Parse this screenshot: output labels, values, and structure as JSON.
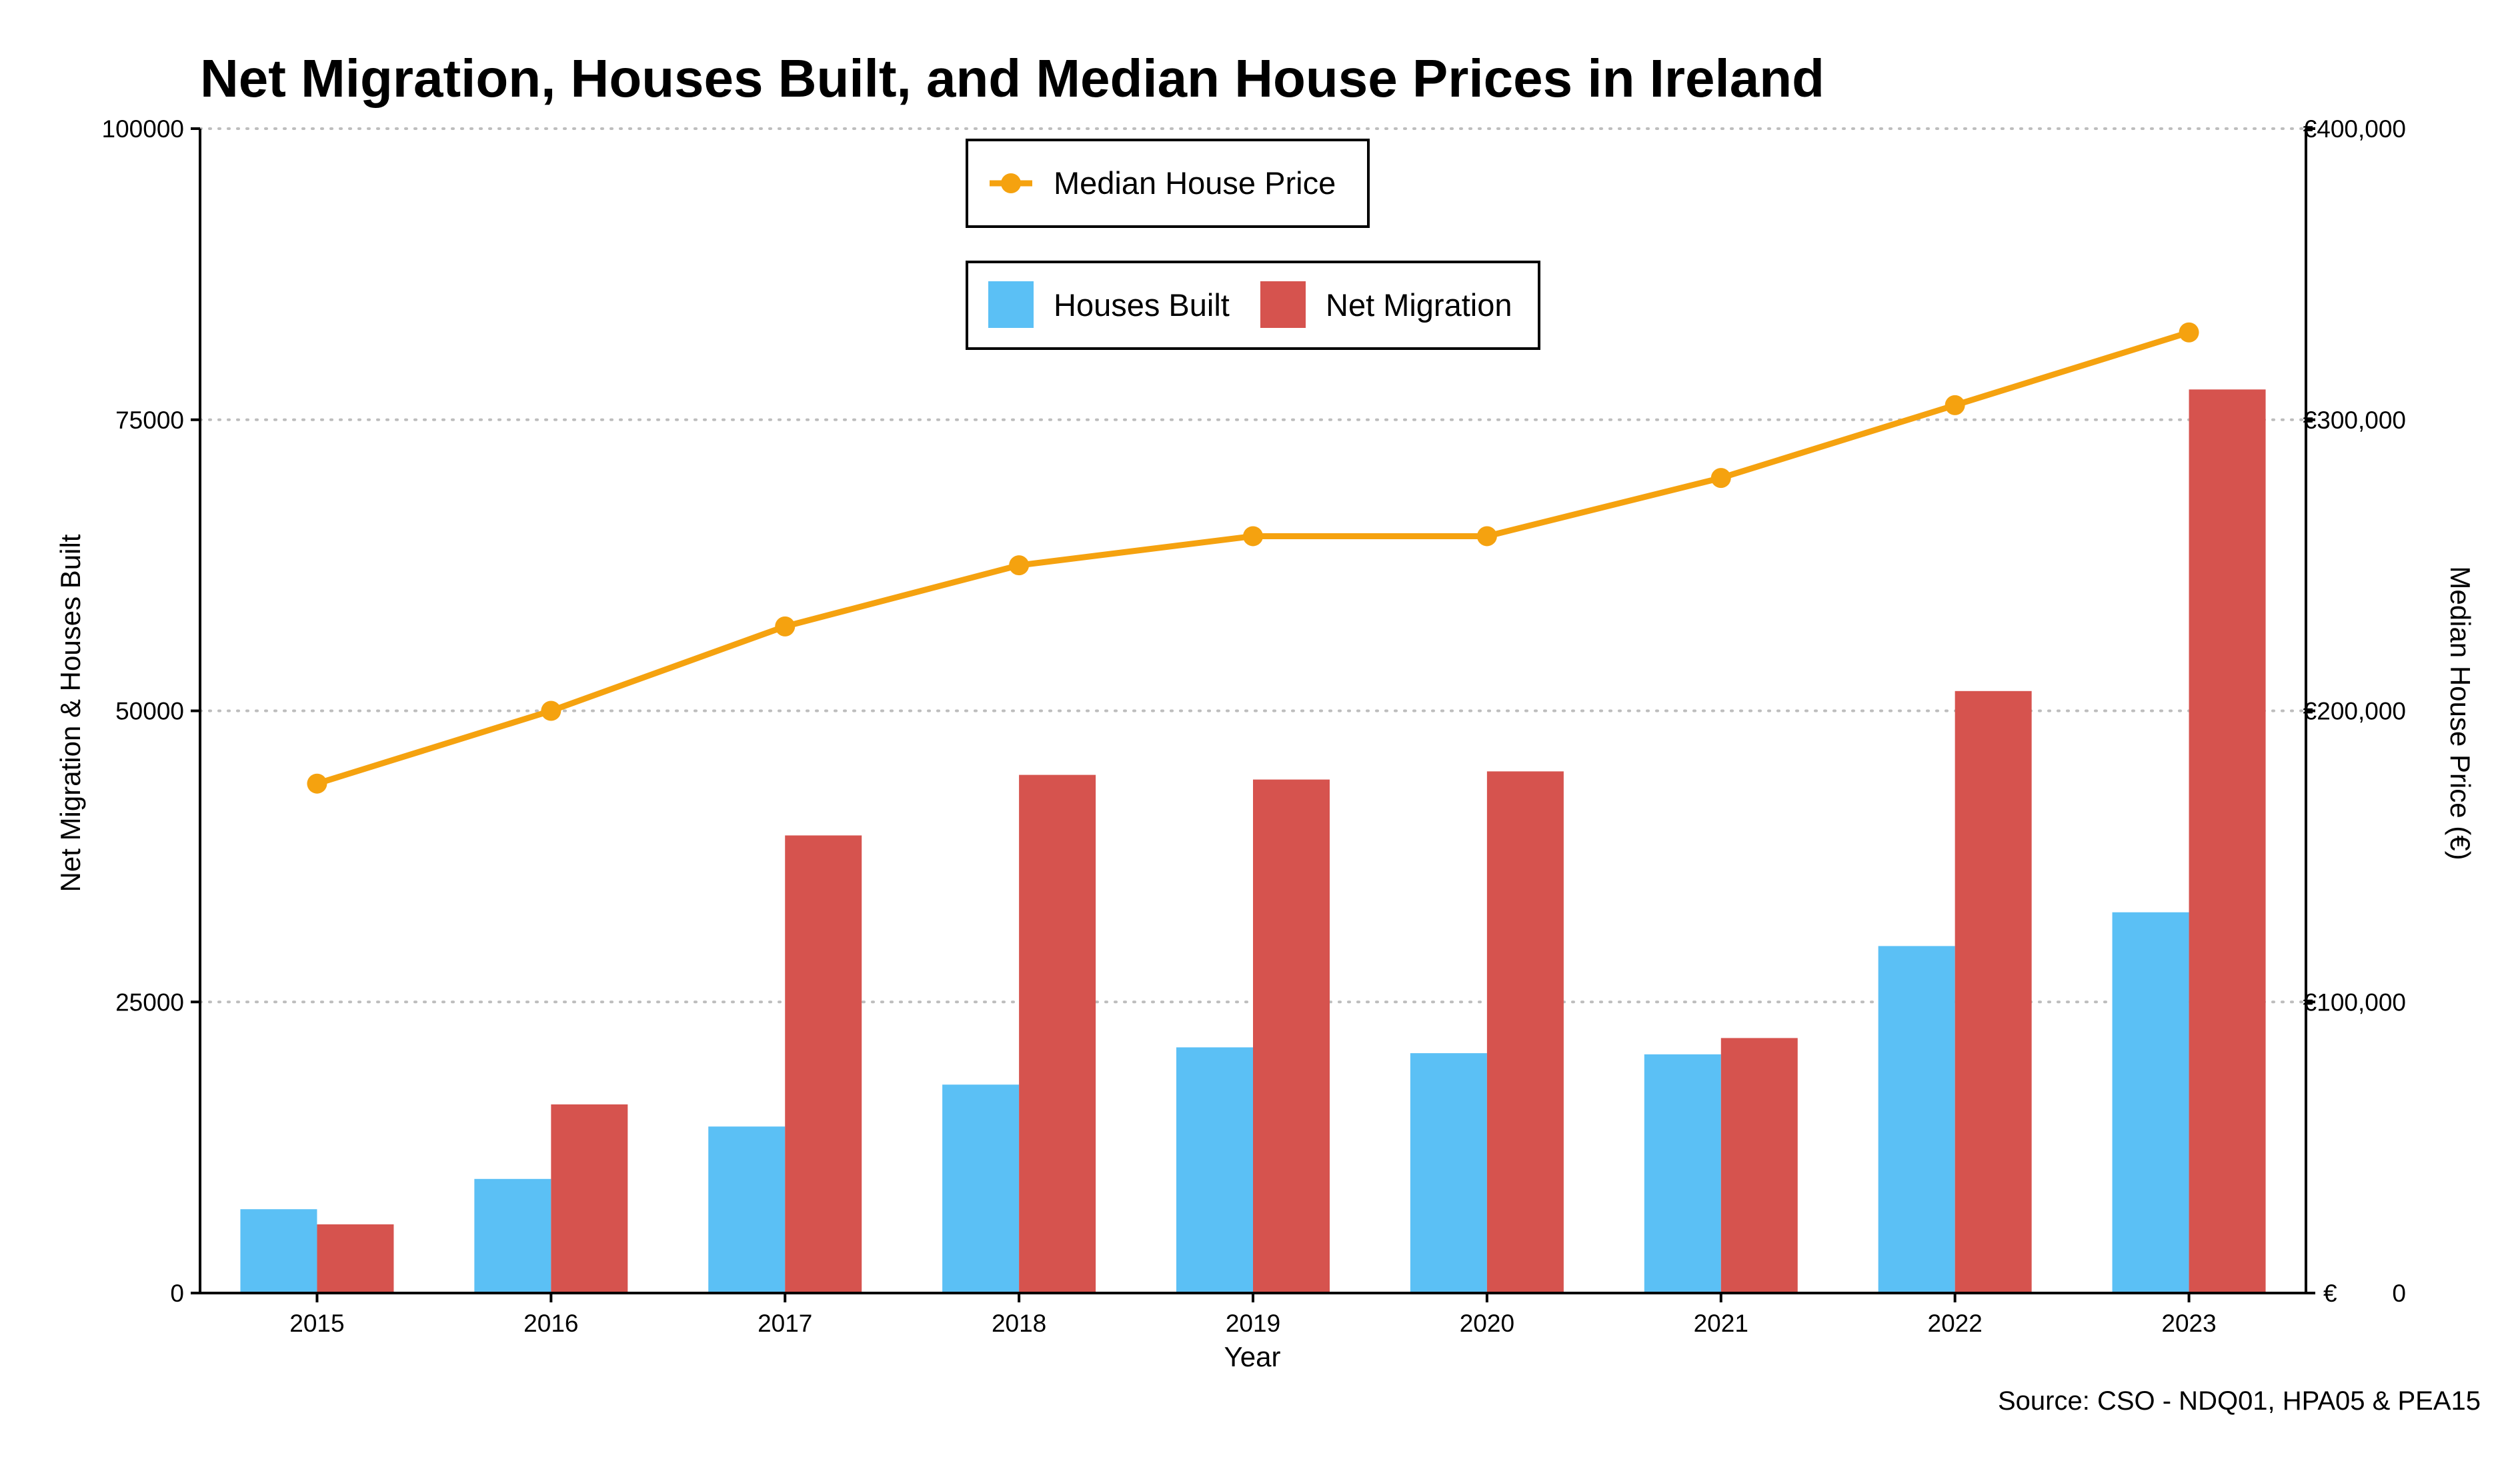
{
  "chart_data": {
    "type": "bar",
    "title": "Net Migration, Houses Built, and Median House Prices in Ireland",
    "xlabel": "Year",
    "ylabel": "Net Migration & Houses Built",
    "y2label": "Median House Price (€)",
    "source": "Source: CSO - NDQ01, HPA05 & PEA15",
    "categories": [
      "2015",
      "2016",
      "2017",
      "2018",
      "2019",
      "2020",
      "2021",
      "2022",
      "2023"
    ],
    "ylim": [
      0,
      100000
    ],
    "y_ticks": [
      0,
      25000,
      50000,
      75000,
      100000
    ],
    "y_tick_labels": [
      "0",
      "25000",
      "50000",
      "75000",
      "100000"
    ],
    "y2lim": [
      0,
      400000
    ],
    "y2_ticks": [
      0,
      100000,
      200000,
      300000,
      400000
    ],
    "y2_tick_labels": [
      "€ 0",
      "€100,000",
      "€200,000",
      "€300,000",
      "€400,000"
    ],
    "grid": "horizontal dotted",
    "series": [
      {
        "name": "Houses Built",
        "type": "bar",
        "axis": "left",
        "color": "#5BC0F5",
        "values": [
          7200,
          9800,
          14300,
          17900,
          21100,
          20600,
          20500,
          29800,
          32700
        ]
      },
      {
        "name": "Net Migration",
        "type": "bar",
        "axis": "left",
        "color": "#D6534E",
        "values": [
          5900,
          16200,
          39300,
          44500,
          44100,
          44800,
          21900,
          51700,
          77600
        ]
      },
      {
        "name": "Median House Price",
        "type": "line",
        "axis": "right",
        "color": "#F5A20F",
        "values": [
          175000,
          200000,
          229000,
          250000,
          260000,
          260000,
          280000,
          305000,
          330000
        ]
      }
    ],
    "legends": [
      {
        "position": "top-center",
        "entries": [
          "Median House Price"
        ]
      },
      {
        "position": "top-center",
        "entries": [
          "Houses Built",
          "Net Migration"
        ]
      }
    ]
  }
}
